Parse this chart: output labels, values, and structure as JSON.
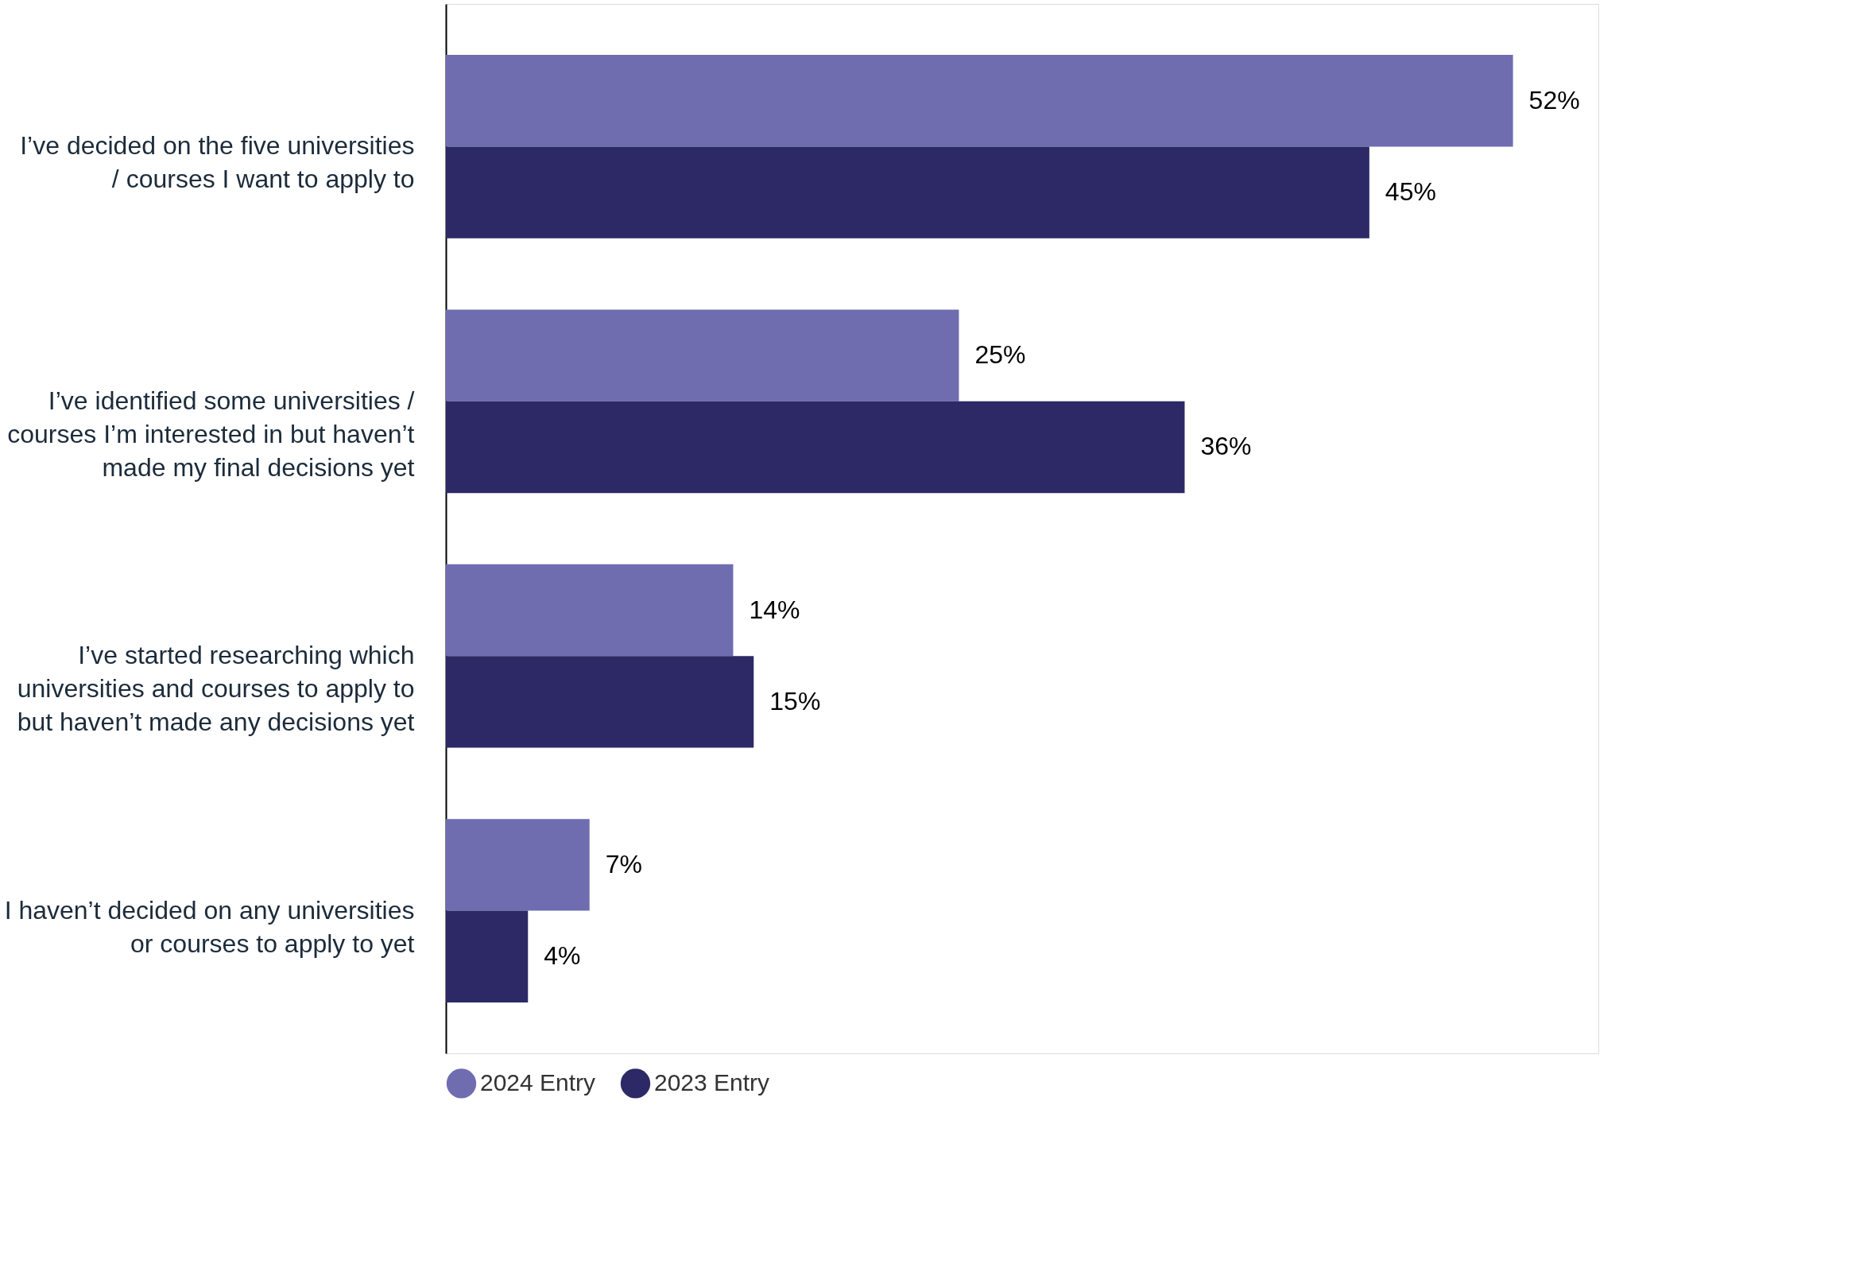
{
  "chart_data": {
    "type": "bar",
    "orientation": "horizontal",
    "legend": "bottom",
    "categories": [
      "I’ve decided on the five universities / courses I want to apply to",
      "I’ve identified some universities / courses I’m interested in but haven’t made my final decisions yet",
      "I’ve started researching which universities and courses to apply to but haven’t made any decisions yet",
      "I haven’t decided on any universities or courses to apply to yet"
    ],
    "series": [
      {
        "name": "2024 Entry",
        "color": "#6f6db0",
        "values": [
          52,
          25,
          14,
          7
        ],
        "value_labels": [
          "52%",
          "25%",
          "14%",
          "7%"
        ]
      },
      {
        "name": "2023 Entry",
        "color": "#2c2966",
        "values": [
          45,
          36,
          15,
          4
        ],
        "value_labels": [
          "45%",
          "36%",
          "15%",
          "4%"
        ]
      }
    ]
  }
}
